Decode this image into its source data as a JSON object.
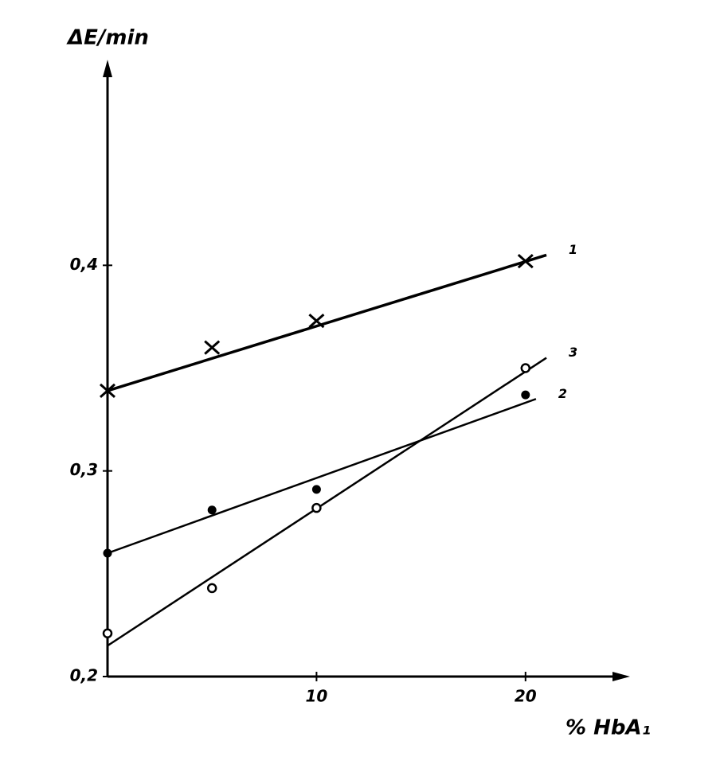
{
  "chart_data": {
    "type": "scatter",
    "y_label": "ΔE/min",
    "x_label": "% HbA₁",
    "xlim": [
      0,
      25
    ],
    "ylim": [
      0.2,
      0.5
    ],
    "xticks": [
      10,
      20
    ],
    "yticks": [
      {
        "value": 0.2,
        "label": "0,2"
      },
      {
        "value": 0.3,
        "label": "0,3"
      },
      {
        "value": 0.4,
        "label": "0,4"
      }
    ],
    "series": [
      {
        "name": "1",
        "color": "#000000",
        "marker": "x",
        "x": [
          0,
          5,
          10,
          20
        ],
        "values": [
          0.339,
          0.36,
          0.373,
          0.402
        ],
        "fit": {
          "x": [
            0,
            21
          ],
          "values": [
            0.339,
            0.405
          ]
        }
      },
      {
        "name": "2",
        "color": "#000000",
        "marker": "filled",
        "x": [
          0,
          5,
          10,
          20
        ],
        "values": [
          0.26,
          0.281,
          0.291,
          0.337
        ],
        "fit": {
          "x": [
            0,
            20.5
          ],
          "values": [
            0.26,
            0.335
          ]
        }
      },
      {
        "name": "3",
        "color": "#000000",
        "marker": "open",
        "x": [
          0,
          5,
          10,
          20
        ],
        "values": [
          0.221,
          0.243,
          0.282,
          0.35
        ],
        "fit": {
          "x": [
            0,
            21
          ],
          "values": [
            0.215,
            0.355
          ]
        }
      }
    ]
  }
}
